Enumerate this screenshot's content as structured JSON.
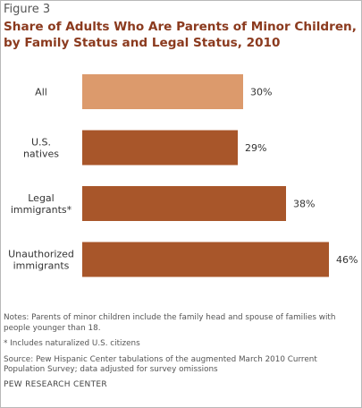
{
  "figure_label": "Figure 3",
  "title": "Share of Adults Who Are Parents of Minor Children, by Family Status and Legal Status, 2010",
  "colors": {
    "title": "#8b3a1e",
    "bar_all": "#dc9a6c",
    "bar_group": "#a8562a"
  },
  "chart_data": {
    "type": "bar",
    "orientation": "horizontal",
    "title": "Share of Adults Who Are Parents of Minor Children, by Family Status and Legal Status, 2010",
    "categories": [
      [
        "All"
      ],
      [
        "U.S.",
        "natives"
      ],
      [
        "Legal",
        "immigrants*"
      ],
      [
        "Unauthorized",
        "immigrants"
      ]
    ],
    "values": [
      30,
      29,
      38,
      46
    ],
    "value_labels": [
      "30%",
      "29%",
      "38%",
      "46%"
    ],
    "unit": "%",
    "xlim": [
      0,
      46
    ],
    "grid": false,
    "legend": "none"
  },
  "notes": {
    "note": "Notes: Parents of minor children include the family head and spouse of families with people younger than 18.",
    "footnote": "* Includes naturalized U.S. citizens",
    "source": "Source: Pew Hispanic Center tabulations of the augmented March 2010 Current Population Survey; data adjusted for survey omissions",
    "org": "PEW RESEARCH CENTER"
  }
}
